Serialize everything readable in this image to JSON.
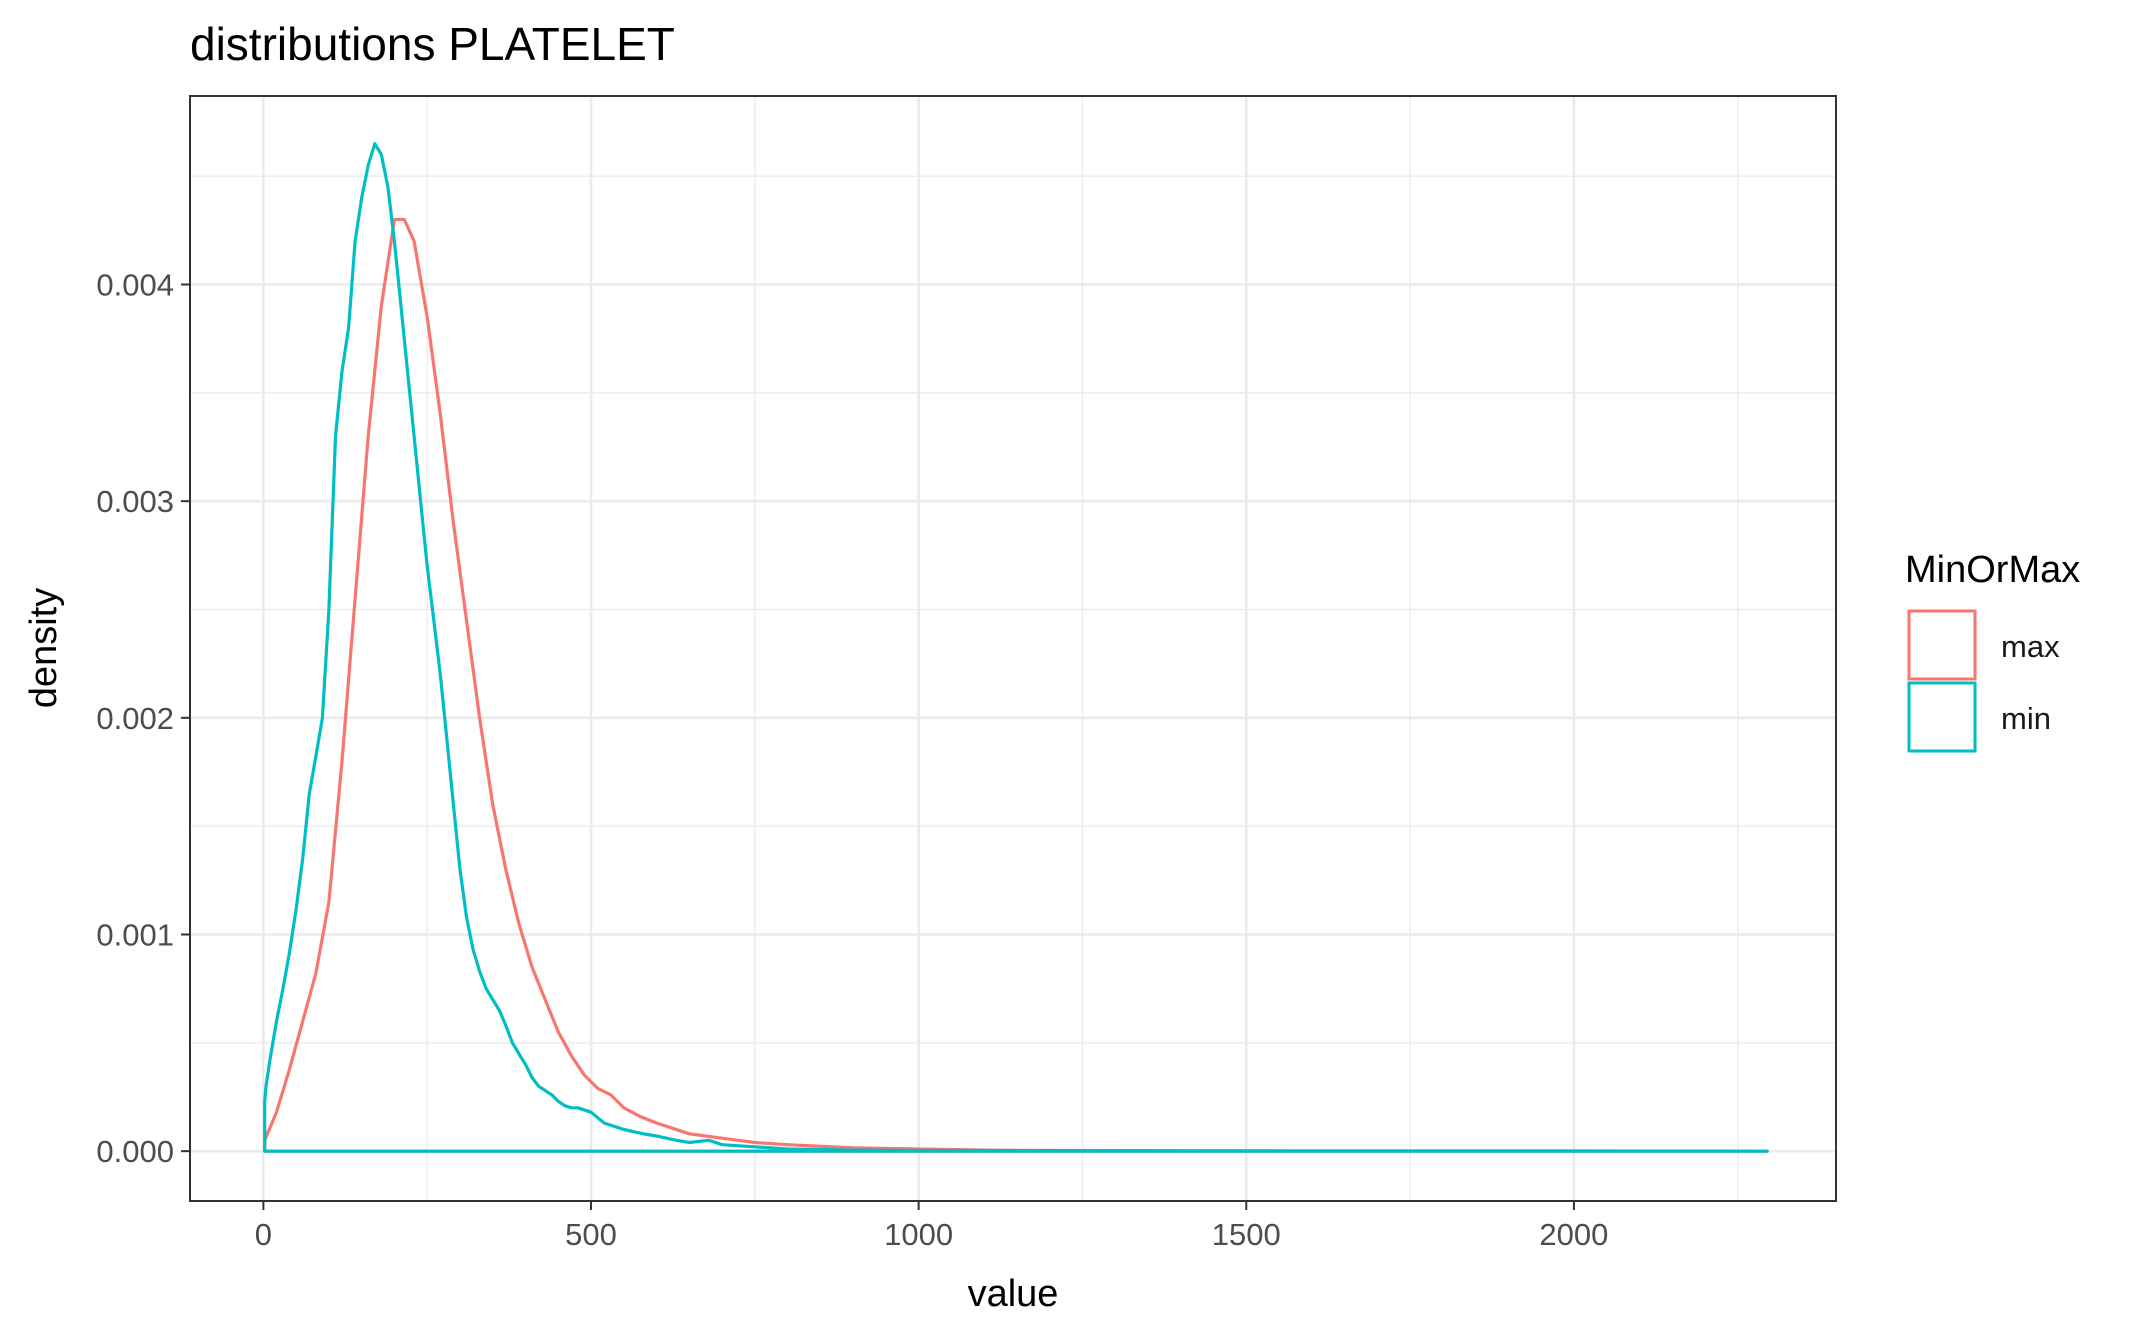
{
  "chart_data": {
    "type": "line",
    "title": "distributions PLATELET",
    "xlabel": "value",
    "ylabel": "density",
    "xlim": [
      -112,
      2400
    ],
    "ylim": [
      -0.00023,
      0.00487
    ],
    "x_ticks": [
      0,
      500,
      1000,
      1500,
      2000
    ],
    "x_tick_labels": [
      "0",
      "500",
      "1000",
      "1500",
      "2000"
    ],
    "y_ticks": [
      0.0,
      0.001,
      0.002,
      0.003,
      0.004
    ],
    "y_tick_labels": [
      "0.000",
      "0.001",
      "0.002",
      "0.003",
      "0.004"
    ],
    "grid": true,
    "legend": {
      "title": "MinOrMax",
      "position": "right",
      "entries": [
        {
          "label": "max",
          "color": "#F8766D"
        },
        {
          "label": "min",
          "color": "#00BFC4"
        }
      ]
    },
    "series": [
      {
        "name": "max",
        "color": "#F8766D",
        "x": [
          2,
          20,
          40,
          60,
          80,
          100,
          120,
          140,
          160,
          180,
          200,
          215,
          230,
          250,
          270,
          290,
          310,
          330,
          350,
          370,
          390,
          410,
          430,
          450,
          470,
          490,
          510,
          530,
          550,
          575,
          600,
          650,
          700,
          750,
          800,
          900,
          1000,
          1100,
          1200,
          1400,
          1600,
          1800,
          2000,
          2200,
          2295
        ],
        "y": [
          5e-05,
          0.00018,
          0.00038,
          0.0006,
          0.00082,
          0.00115,
          0.0018,
          0.00255,
          0.0033,
          0.0039,
          0.0043,
          0.0043,
          0.0042,
          0.00385,
          0.0034,
          0.0029,
          0.00245,
          0.002,
          0.0016,
          0.0013,
          0.00105,
          0.00085,
          0.0007,
          0.00055,
          0.00044,
          0.00035,
          0.00029,
          0.00026,
          0.0002,
          0.00016,
          0.00013,
          8e-05,
          6e-05,
          4e-05,
          3e-05,
          1.5e-05,
          1e-05,
          5e-06,
          3e-06,
          2e-06,
          1e-06,
          1e-06,
          1e-06,
          5e-07,
          0.0
        ]
      },
      {
        "name": "min",
        "color": "#00BFC4",
        "x": [
          2,
          4,
          10,
          20,
          30,
          40,
          50,
          60,
          70,
          80,
          90,
          100,
          110,
          120,
          130,
          140,
          150,
          160,
          170,
          180,
          190,
          200,
          210,
          220,
          230,
          240,
          250,
          260,
          270,
          280,
          290,
          300,
          310,
          320,
          330,
          340,
          350,
          360,
          370,
          380,
          390,
          400,
          410,
          420,
          430,
          440,
          450,
          460,
          470,
          480,
          500,
          520,
          530,
          550,
          580,
          600,
          630,
          650,
          680,
          700,
          750,
          800,
          900,
          1000,
          1100,
          1200,
          1400,
          1600,
          1800,
          2000,
          2200,
          2295
        ],
        "y": [
          0.00023,
          0.0003,
          0.00042,
          0.0006,
          0.00075,
          0.00092,
          0.00112,
          0.00135,
          0.00165,
          0.00182,
          0.002,
          0.0025,
          0.0033,
          0.0036,
          0.0038,
          0.0042,
          0.0044,
          0.00455,
          0.00465,
          0.0046,
          0.00445,
          0.0042,
          0.0039,
          0.0036,
          0.0033,
          0.003,
          0.0027,
          0.00245,
          0.0022,
          0.0019,
          0.0016,
          0.0013,
          0.00108,
          0.00093,
          0.00083,
          0.00075,
          0.0007,
          0.00065,
          0.00058,
          0.0005,
          0.00045,
          0.0004,
          0.00034,
          0.0003,
          0.00028,
          0.00026,
          0.00023,
          0.00021,
          0.0002,
          0.0002,
          0.00018,
          0.00013,
          0.00012,
          0.0001,
          8e-05,
          7e-05,
          5e-05,
          4e-05,
          5e-05,
          3e-05,
          2e-05,
          1e-05,
          5e-06,
          3e-06,
          3e-06,
          2e-06,
          1e-06,
          1e-06,
          1e-06,
          1e-06,
          5e-07,
          0.0
        ]
      }
    ]
  }
}
